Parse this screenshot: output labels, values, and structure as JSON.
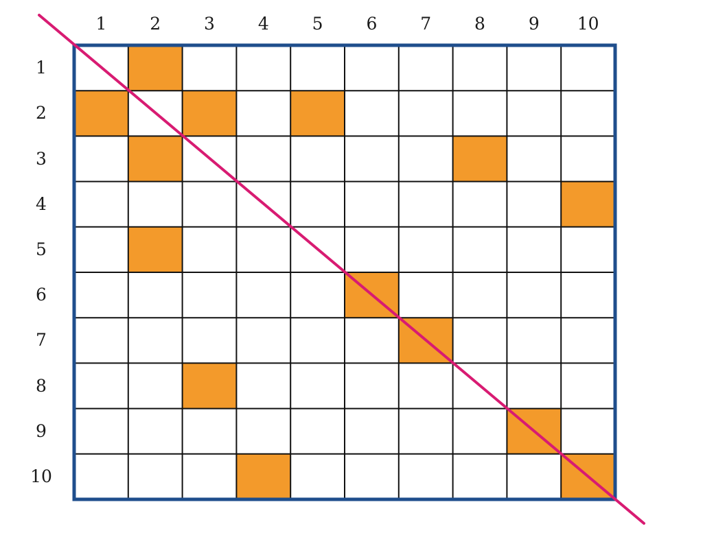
{
  "grid": {
    "rows": 10,
    "cols": 10,
    "column_labels": [
      "1",
      "2",
      "3",
      "4",
      "5",
      "6",
      "7",
      "8",
      "9",
      "10"
    ],
    "row_labels": [
      "1",
      "2",
      "3",
      "4",
      "5",
      "6",
      "7",
      "8",
      "9",
      "10"
    ],
    "filled_cells": [
      {
        "row": 1,
        "col": 2
      },
      {
        "row": 2,
        "col": 1
      },
      {
        "row": 2,
        "col": 3
      },
      {
        "row": 2,
        "col": 5
      },
      {
        "row": 3,
        "col": 2
      },
      {
        "row": 3,
        "col": 8
      },
      {
        "row": 4,
        "col": 10
      },
      {
        "row": 5,
        "col": 2
      },
      {
        "row": 6,
        "col": 6
      },
      {
        "row": 7,
        "col": 7
      },
      {
        "row": 8,
        "col": 3
      },
      {
        "row": 9,
        "col": 9
      },
      {
        "row": 10,
        "col": 4
      },
      {
        "row": 10,
        "col": 10
      }
    ],
    "has_diagonal_line": true
  },
  "colors": {
    "fill": "#F39A2B",
    "border": "#1F4E8C",
    "grid_line": "#111111",
    "diagonal": "#D81B72"
  }
}
